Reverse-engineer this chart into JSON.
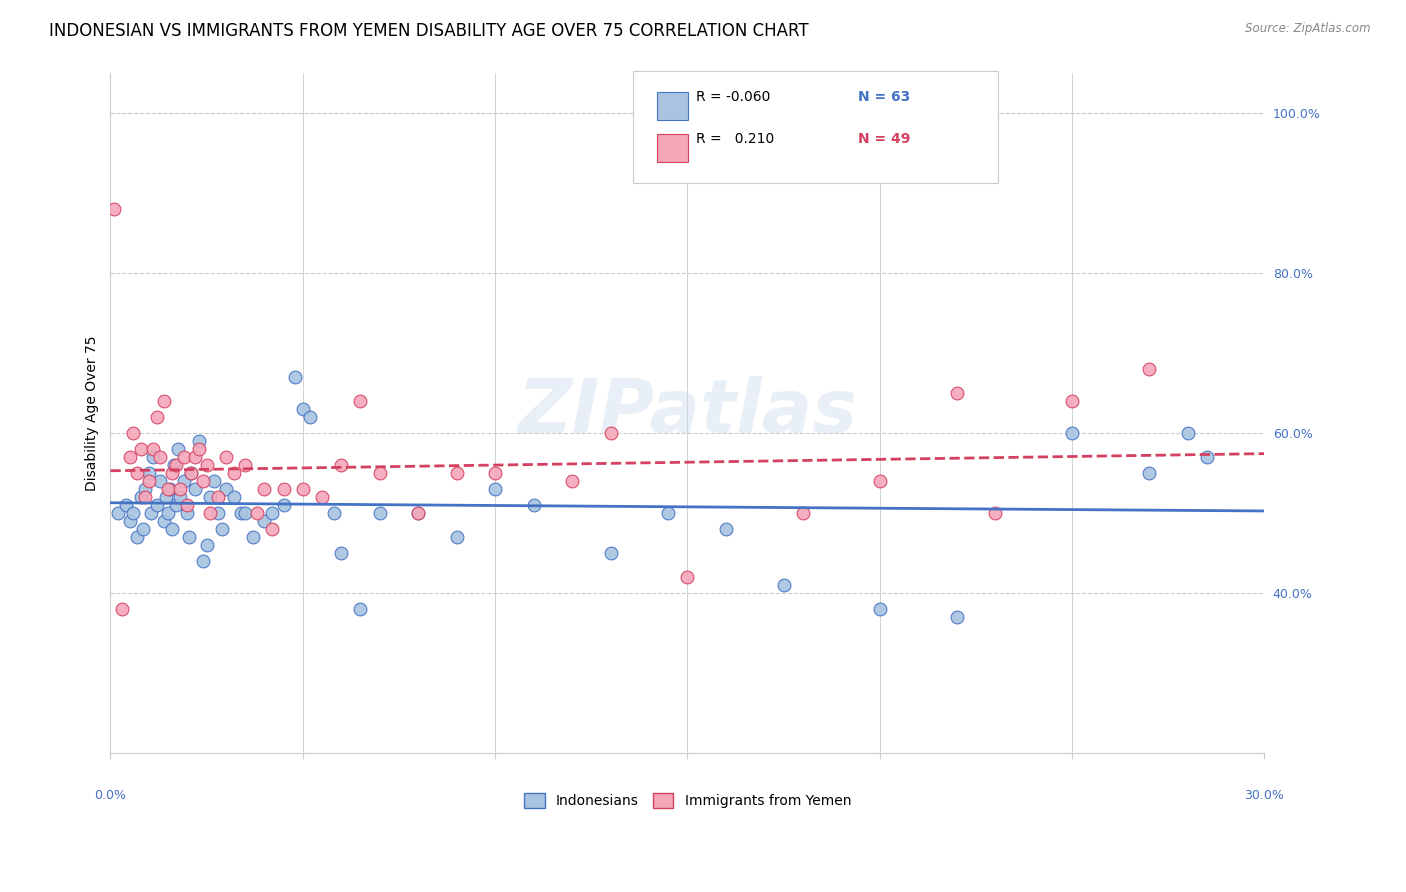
{
  "title": "INDONESIAN VS IMMIGRANTS FROM YEMEN DISABILITY AGE OVER 75 CORRELATION CHART",
  "source": "Source: ZipAtlas.com",
  "ylabel": "Disability Age Over 75",
  "legend_label1": "Indonesians",
  "legend_label2": "Immigrants from Yemen",
  "r1": "-0.060",
  "n1": "63",
  "r2": "0.210",
  "n2": "49",
  "color1": "#a8c4e0",
  "color2": "#f4a7b9",
  "line_color1": "#4472c4",
  "line_color2": "#d44060",
  "xmin": 0.0,
  "xmax": 30.0,
  "ymin": 20.0,
  "ymax": 105.0,
  "yticks_right": [
    40.0,
    60.0,
    80.0,
    100.0
  ],
  "ytick_labels_right": [
    "40.0%",
    "60.0%",
    "80.0%",
    "100.0%"
  ],
  "grid_color": "#cccccc",
  "background_color": "#ffffff",
  "indonesians_x": [
    0.2,
    0.4,
    0.5,
    0.6,
    0.7,
    0.8,
    0.85,
    0.9,
    1.0,
    1.05,
    1.1,
    1.2,
    1.3,
    1.4,
    1.45,
    1.5,
    1.55,
    1.6,
    1.65,
    1.7,
    1.75,
    1.8,
    1.9,
    2.0,
    2.05,
    2.1,
    2.2,
    2.3,
    2.4,
    2.5,
    2.6,
    2.7,
    2.8,
    2.9,
    3.0,
    3.2,
    3.4,
    3.5,
    3.7,
    4.0,
    4.2,
    4.5,
    4.8,
    5.0,
    5.2,
    5.8,
    6.0,
    6.5,
    7.0,
    8.0,
    9.0,
    10.0,
    11.0,
    13.0,
    14.5,
    16.0,
    17.5,
    20.0,
    22.0,
    25.0,
    27.0,
    28.0,
    28.5
  ],
  "indonesians_y": [
    50,
    51,
    49,
    50,
    47,
    52,
    48,
    53,
    55,
    50,
    57,
    51,
    54,
    49,
    52,
    50,
    53,
    48,
    56,
    51,
    58,
    52,
    54,
    50,
    47,
    55,
    53,
    59,
    44,
    46,
    52,
    54,
    50,
    48,
    53,
    52,
    50,
    50,
    47,
    49,
    50,
    51,
    67,
    63,
    62,
    50,
    45,
    38,
    50,
    50,
    47,
    53,
    51,
    45,
    50,
    48,
    41,
    38,
    37,
    60,
    55,
    60,
    57
  ],
  "yemen_x": [
    0.1,
    0.3,
    0.5,
    0.6,
    0.7,
    0.8,
    0.9,
    1.0,
    1.1,
    1.2,
    1.3,
    1.4,
    1.5,
    1.6,
    1.7,
    1.8,
    1.9,
    2.0,
    2.1,
    2.2,
    2.3,
    2.4,
    2.5,
    2.6,
    2.8,
    3.0,
    3.2,
    3.5,
    3.8,
    4.0,
    4.2,
    4.5,
    5.0,
    5.5,
    6.0,
    6.5,
    7.0,
    8.0,
    9.0,
    10.0,
    12.0,
    13.0,
    15.0,
    18.0,
    20.0,
    22.0,
    23.0,
    25.0,
    27.0
  ],
  "yemen_y": [
    88,
    38,
    57,
    60,
    55,
    58,
    52,
    54,
    58,
    62,
    57,
    64,
    53,
    55,
    56,
    53,
    57,
    51,
    55,
    57,
    58,
    54,
    56,
    50,
    52,
    57,
    55,
    56,
    50,
    53,
    48,
    53,
    53,
    52,
    56,
    64,
    55,
    50,
    55,
    55,
    54,
    60,
    42,
    50,
    54,
    65,
    50,
    64,
    68
  ],
  "watermark": "ZIPatlas",
  "title_fontsize": 12,
  "axis_fontsize": 10,
  "tick_fontsize": 9
}
